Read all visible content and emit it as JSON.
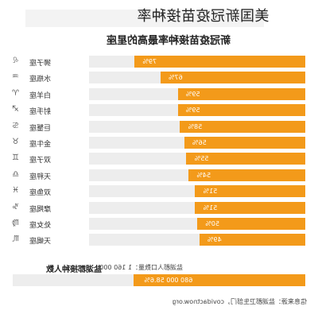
{
  "header": {
    "overlay_title": "美国新冠疫苗接种率",
    "subtitle": "新冠疫苗接种率最高的星座"
  },
  "chart_data": {
    "type": "bar",
    "orientation": "horizontal",
    "mirrored": true,
    "categories": [
      "狮子座",
      "水瓶座",
      "白羊座",
      "射手座",
      "巨蟹座",
      "金牛座",
      "双子座",
      "天秤座",
      "双鱼座",
      "摩羯座",
      "处女座",
      "天蝎座"
    ],
    "category_icons": [
      "♌",
      "♒",
      "♈",
      "♐",
      "♋",
      "♉",
      "♊",
      "♎",
      "♓",
      "♑",
      "♍",
      "♏"
    ],
    "values": [
      79,
      67,
      59,
      59,
      58,
      56,
      55,
      54,
      51,
      51,
      50,
      49
    ],
    "value_labels": [
      "79%",
      "67%",
      "59%",
      "59%",
      "58%",
      "56%",
      "55%",
      "54%",
      "51%",
      "51%",
      "50%",
      "49%"
    ],
    "xlim": [
      0,
      100
    ],
    "bar_color": "#f39a1a",
    "track_color": "#ededed"
  },
  "summary": {
    "title": "盐湖郡接种人数",
    "population_label": "盐湖郡人口数量：1 160 000",
    "vaccinated_label": "680 000 58.6%",
    "fraction": 0.586
  },
  "footer": {
    "source": "信息来源：盐湖郡卫生部门，covidactnow.org"
  }
}
